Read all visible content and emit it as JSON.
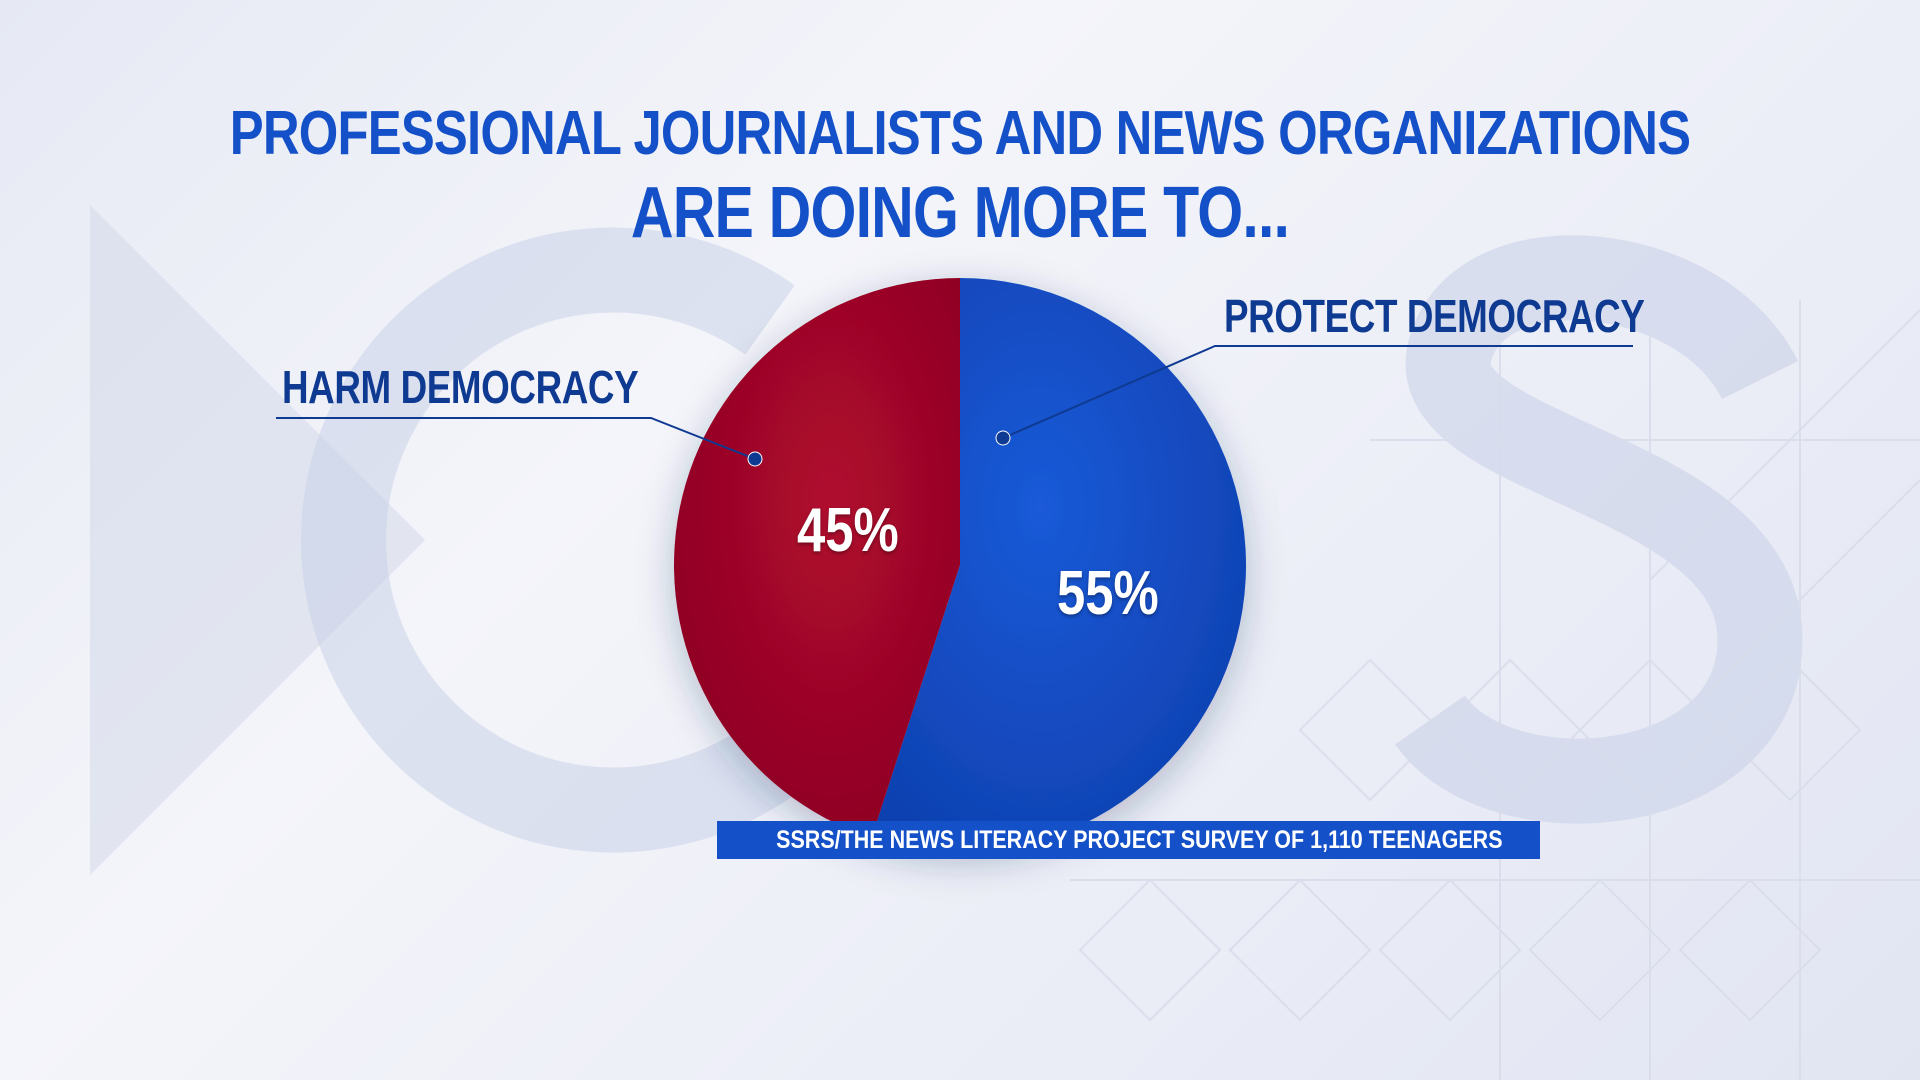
{
  "title": {
    "line1": "PROFESSIONAL JOURNALISTS AND NEWS ORGANIZATIONS",
    "line2": "ARE DOING MORE TO..."
  },
  "source": "SSRS/THE NEWS LITERACY PROJECT SURVEY OF 1,110 TEENAGERS",
  "colors": {
    "title": "#1450c8",
    "label": "#0f3a92",
    "harm": "#a8062a",
    "protect": "#1450c8"
  },
  "chart_data": {
    "type": "pie",
    "title": "PROFESSIONAL JOURNALISTS AND NEWS ORGANIZATIONS ARE DOING MORE TO...",
    "slices": [
      {
        "label": "PROTECT DEMOCRACY",
        "value": 55,
        "display": "55%",
        "color": "#1450c8"
      },
      {
        "label": "HARM DEMOCRACY",
        "value": 45,
        "display": "45%",
        "color": "#a8062a"
      }
    ],
    "start": "top, clockwise",
    "legend": "callout labels"
  }
}
